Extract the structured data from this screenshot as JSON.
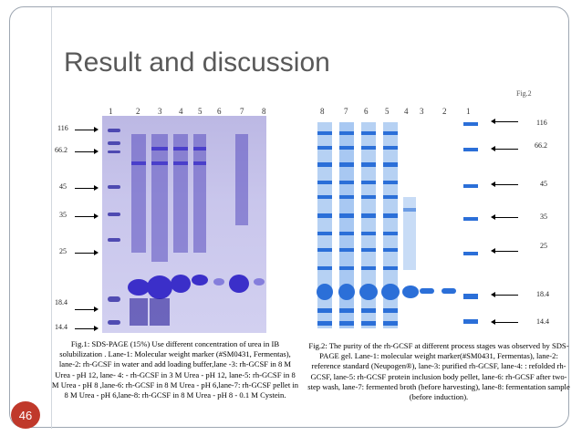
{
  "slide": {
    "title": "Result and discussion",
    "page_number": "46",
    "colors": {
      "badge": "#c0392b",
      "title": "#595959",
      "gel1_band": "#3b2fc9",
      "gel2_band": "#2b6fd8"
    }
  },
  "figure1": {
    "lane_numbers": [
      "1",
      "2",
      "3",
      "4",
      "5",
      "6",
      "7",
      "8"
    ],
    "markers": [
      "116",
      "66.2",
      "45",
      "35",
      "25",
      "18.4",
      "14.4"
    ],
    "caption": "Fig.1: SDS-PAGE (15%) Use different concentration of urea in IB solubilization . Lane-1: Molecular weight marker (#SM0431, Fermentas), lane-2: rh-GCSF in water and add loading buffer,lane -3: rh-GCSF in 8 M Urea - pH 12, lane- 4: - rh-GCSF in 3 M Urea - pH 12, lane-5: rh-GCSF in 8 M Urea - pH 8 ,lane-6: rh-GCSF in 8 M Urea - pH 6,lane-7: rh-GCSF pellet in 8 M Urea - pH 6,lane-8: rh-GCSF in 8 M Urea - pH 8 - 0.1 M Cystein."
  },
  "figure2": {
    "lane_numbers": [
      "8",
      "7",
      "6",
      "5",
      "4",
      "3",
      "2",
      "1"
    ],
    "markers": [
      "116",
      "66.2",
      "45",
      "35",
      "25",
      "18.4",
      "14.4"
    ],
    "caption": "Fig.2: The purity of the rh-GCSF at different process stages was observed by SDS-PAGE gel. Lane-1: molecular weight marker(#SM0431, Fermentas), lane-2: reference standard (Neupogen®), lane-3: purified rh-GCSF, lane-4: : refolded rh-GCSF, lane-5: rh-GCSF protein inclusion body pellet, lane-6: rh-GCSF after two-step wash, lane-7: fermented broth (before harvesting), lane-8: fermentation sample (before induction).",
    "top_cut_text": "Fig.2"
  }
}
